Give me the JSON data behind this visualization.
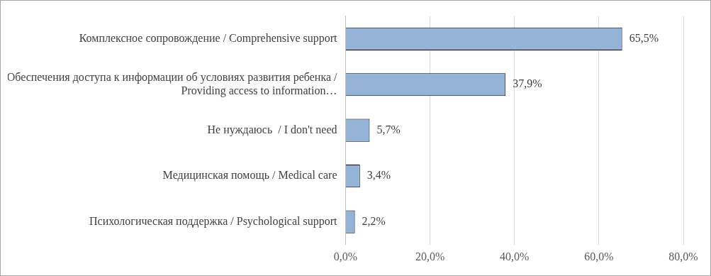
{
  "chart_data": {
    "type": "bar",
    "orientation": "horizontal",
    "categories": [
      "Комплексное сопровождение / Comprehensive support",
      "Обеспечения доступа к информации об условиях развития ребенка / Providing access to information…",
      "Не нуждаюсь  / I don't need",
      "Медицинская помощь / Medical care",
      "Психологическая поддержка / Psychological support"
    ],
    "values": [
      65.5,
      37.9,
      5.7,
      3.4,
      2.2
    ],
    "value_labels": [
      "65,5%",
      "37,9%",
      "5,7%",
      "3,4%",
      "2,2%"
    ],
    "color": "#95b3d7",
    "xlim": [
      0,
      80
    ],
    "xticks": [
      {
        "value": 0,
        "label": "0,0%"
      },
      {
        "value": 20,
        "label": "20,0%"
      },
      {
        "value": 40,
        "label": "40,0%"
      },
      {
        "value": 60,
        "label": "60,0%"
      },
      {
        "value": 80,
        "label": "80,0%"
      }
    ],
    "grid": "x",
    "legend": false
  }
}
